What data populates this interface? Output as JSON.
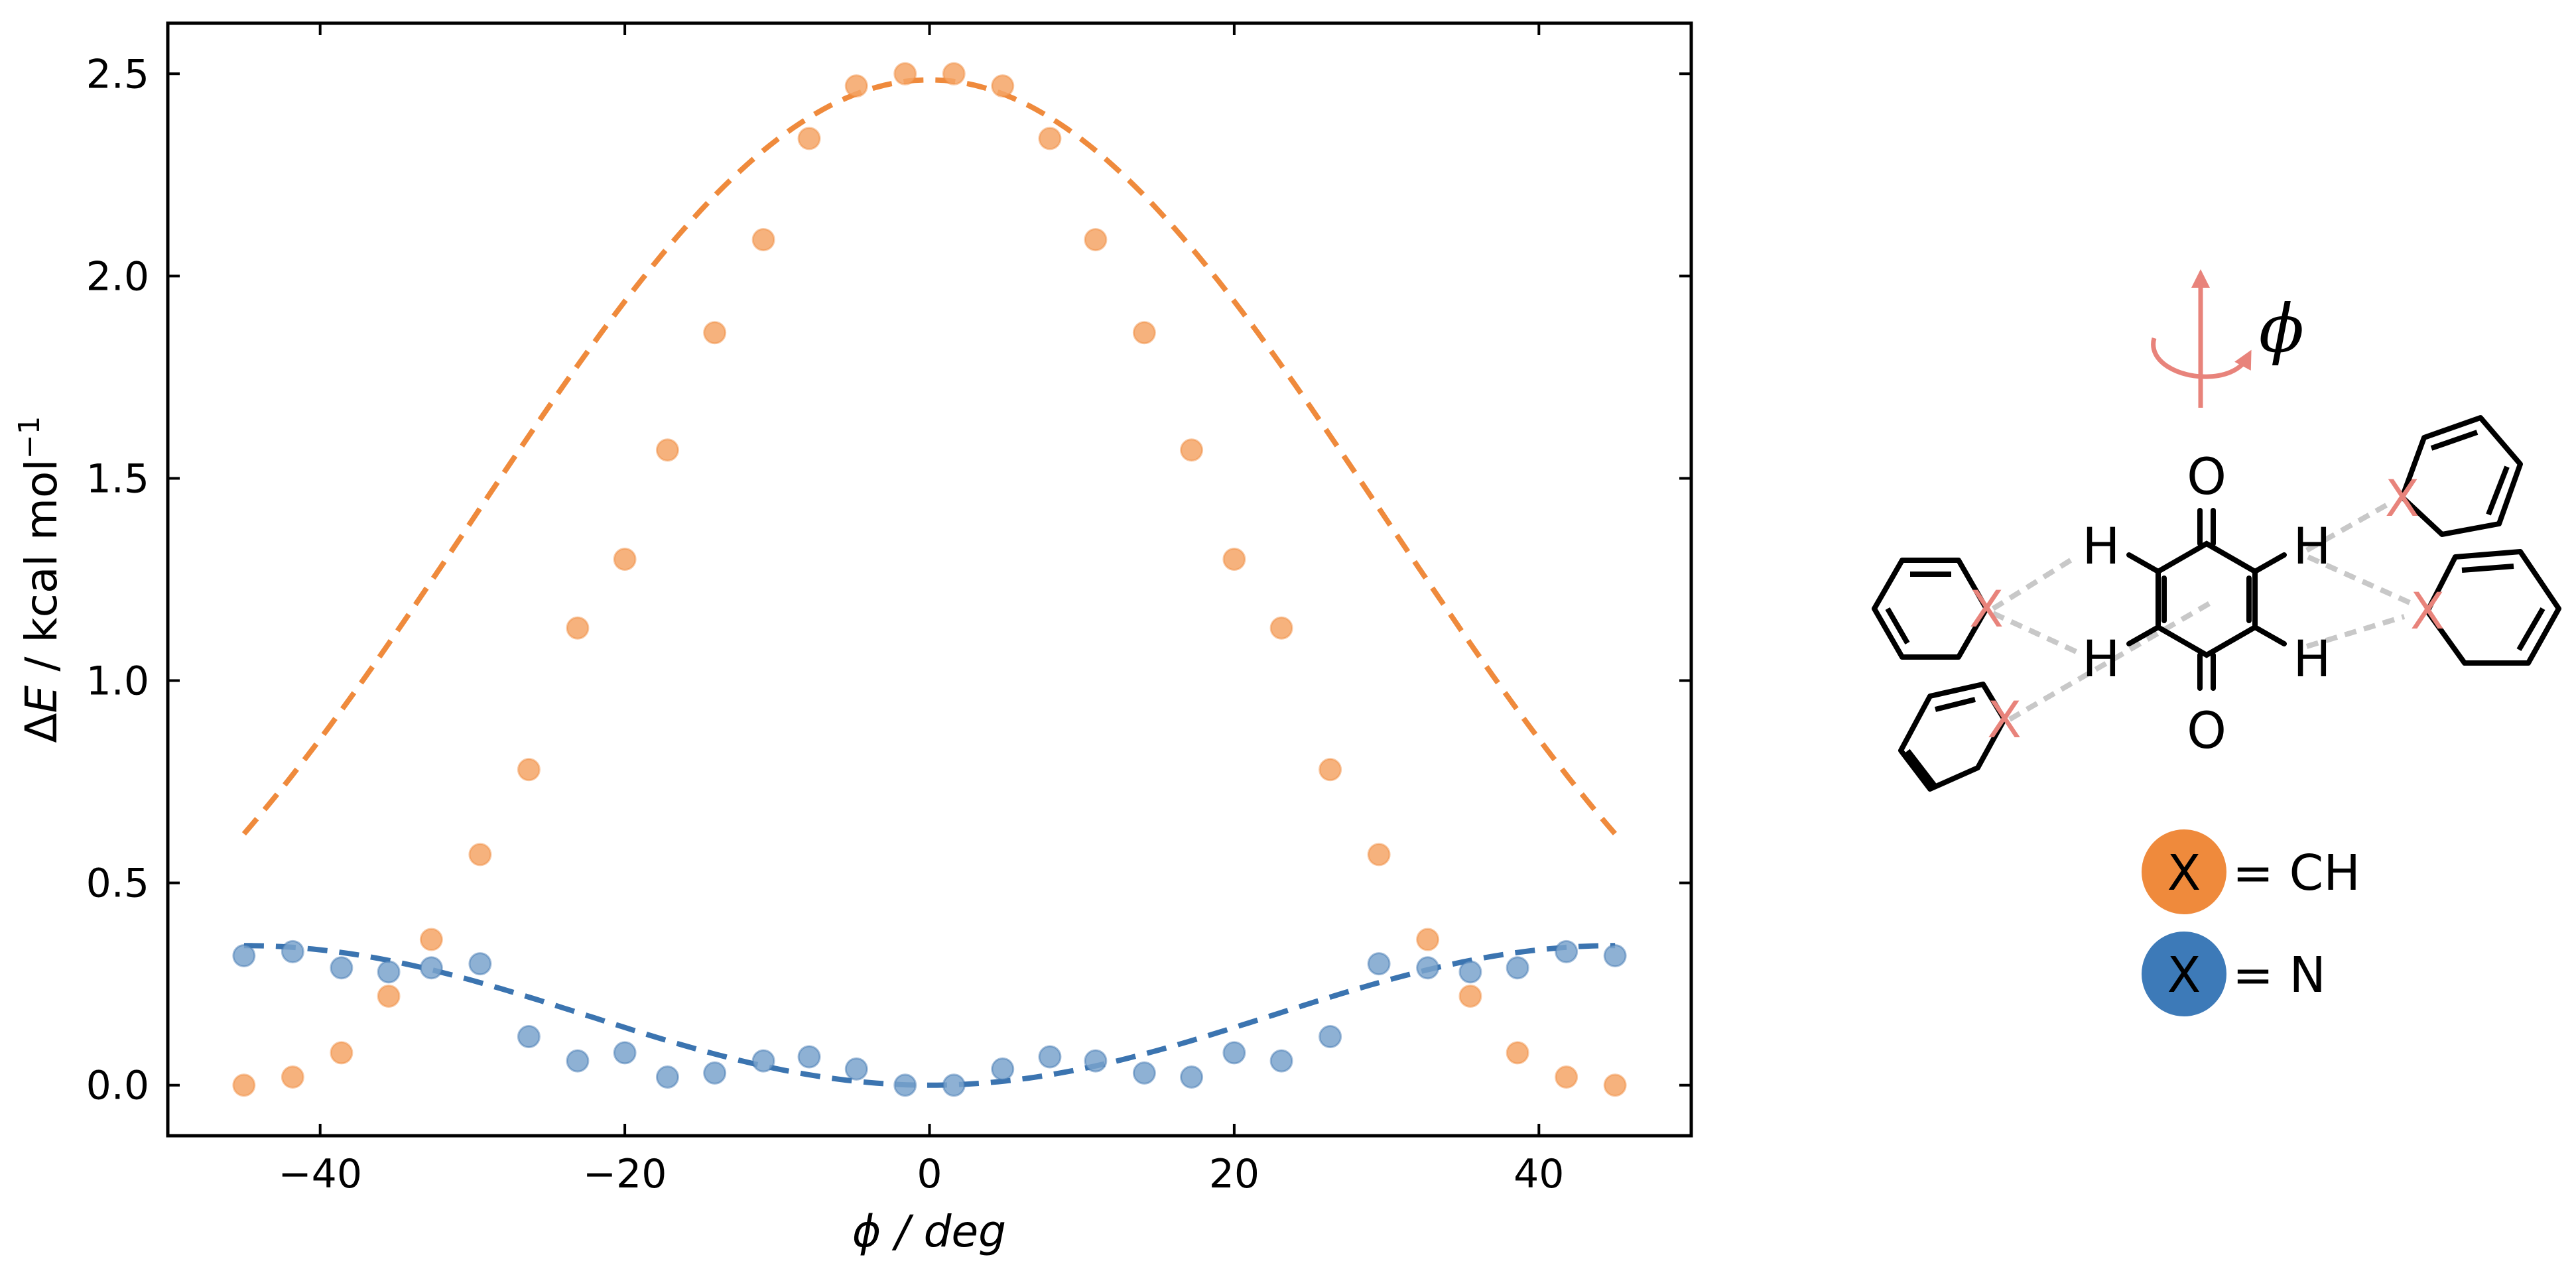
{
  "chart_data": {
    "type": "scatter",
    "xlabel": "ϕ / deg",
    "ylabel_parts": {
      "delta": "Δ",
      "symbol": "E",
      "rest": " / kcal mol",
      "exponent": "−1"
    },
    "xlim": [
      -50,
      50
    ],
    "ylim": [
      -0.125,
      2.625
    ],
    "xticks": [
      -40,
      -20,
      0,
      20,
      40
    ],
    "xtick_labels": [
      "−40",
      "−20",
      "0",
      "20",
      "40"
    ],
    "yticks": [
      0.0,
      0.5,
      1.0,
      1.5,
      2.0,
      2.5
    ],
    "ytick_labels": [
      "0.0",
      "0.5",
      "1.0",
      "1.5",
      "2.0",
      "2.5"
    ],
    "grid": false,
    "series": [
      {
        "name": "CH",
        "color": "#ef8a3c",
        "marker_color": "#f4a466",
        "x": [
          -45,
          -41.8,
          -38.6,
          -35.5,
          -32.7,
          -29.5,
          -26.3,
          -23.1,
          -20,
          -17.2,
          -14.1,
          -10.9,
          -7.9,
          -4.8,
          -1.6,
          1.6,
          4.8,
          7.9,
          10.9,
          14.1,
          17.2,
          20,
          23.1,
          26.3,
          29.5,
          32.7,
          35.5,
          38.6,
          41.8,
          45
        ],
        "y": [
          0.0,
          0.02,
          0.08,
          0.22,
          0.36,
          0.57,
          0.78,
          1.13,
          1.3,
          1.57,
          1.86,
          2.09,
          2.34,
          2.47,
          2.5,
          2.5,
          2.47,
          2.34,
          2.09,
          1.86,
          1.57,
          1.3,
          1.13,
          0.78,
          0.57,
          0.36,
          0.22,
          0.08,
          0.02,
          0.0
        ],
        "fit": {
          "style": "dashed",
          "amplitude": 2.485,
          "period_deg": 90
        }
      },
      {
        "name": "N",
        "color": "#3b74b0",
        "marker_color": "#7aa3cc",
        "x": [
          -45,
          -41.8,
          -38.6,
          -35.5,
          -32.7,
          -29.5,
          -26.3,
          -23.1,
          -20,
          -17.2,
          -14.1,
          -10.9,
          -7.9,
          -4.8,
          -1.6,
          1.6,
          4.8,
          7.9,
          10.9,
          14.1,
          17.2,
          20,
          23.1,
          26.3,
          29.5,
          32.7,
          35.5,
          38.6,
          41.8,
          45
        ],
        "y": [
          0.32,
          0.33,
          0.29,
          0.28,
          0.29,
          0.3,
          0.12,
          0.06,
          0.08,
          0.02,
          0.03,
          0.06,
          0.07,
          0.04,
          0.0,
          0.0,
          0.04,
          0.07,
          0.06,
          0.03,
          0.02,
          0.08,
          0.06,
          0.12,
          0.3,
          0.29,
          0.28,
          0.29,
          0.33,
          0.32
        ],
        "fit": {
          "style": "dashed",
          "amplitude": 0.345,
          "period_deg": 90
        }
      }
    ]
  },
  "scheme": {
    "rotation_symbol": "ϕ",
    "oxygen": "O",
    "hydrogen": "H",
    "substituent": "X",
    "arrow_color": "#e8837b",
    "x_color": "#e8837b",
    "hbond_color": "#c8c8c8"
  },
  "legend": {
    "items": [
      {
        "symbol": "X",
        "text": "= CH",
        "color": "#ef8a3c"
      },
      {
        "symbol": "X",
        "text": "= N",
        "color": "#3d7ab8"
      }
    ]
  }
}
